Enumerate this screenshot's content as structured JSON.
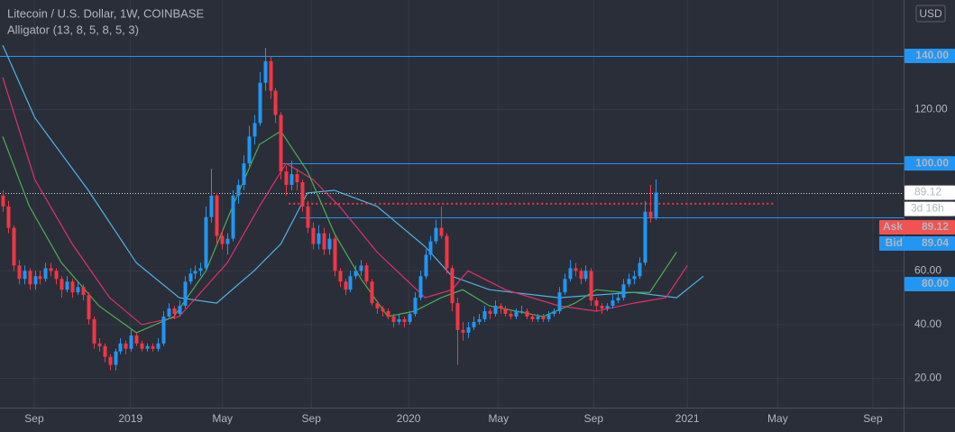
{
  "chart_data": {
    "type": "candlestick",
    "title": "Litecoin / U.S. Dollar, 1W, COINBASE",
    "subtitle": "Alligator (13, 8, 5, 8, 5, 3)",
    "currency": "USD",
    "up_color": "#2196f3",
    "down_color": "#f23645",
    "grid": true,
    "xlim": [
      -0.5,
      168.1
    ],
    "ylim": [
      9.1,
      160.8
    ],
    "xticks": [
      {
        "value": 5.9,
        "label": "Sep"
      },
      {
        "value": 23.9,
        "label": "2019"
      },
      {
        "value": 41.1,
        "label": "May"
      },
      {
        "value": 57.7,
        "label": "Sep"
      },
      {
        "value": 75.9,
        "label": "2020"
      },
      {
        "value": 92.7,
        "label": "May"
      },
      {
        "value": 110.5,
        "label": "Sep"
      },
      {
        "value": 128,
        "label": "2021"
      },
      {
        "value": 144.9,
        "label": "May"
      },
      {
        "value": 162.7,
        "label": "Sep"
      }
    ],
    "yticks": [
      {
        "value": 20,
        "label": "20.00"
      },
      {
        "value": 40,
        "label": "40.00"
      },
      {
        "value": 60,
        "label": "60.00"
      },
      {
        "value": 120,
        "label": "120.00"
      }
    ],
    "ohlc": [
      [
        88,
        90,
        82,
        84
      ],
      [
        84,
        86,
        74,
        76
      ],
      [
        76,
        77,
        60,
        62
      ],
      [
        62,
        64,
        55,
        57
      ],
      [
        57,
        62,
        55,
        60
      ],
      [
        60,
        61,
        53,
        55
      ],
      [
        55,
        60,
        53,
        58
      ],
      [
        58,
        60,
        55,
        57
      ],
      [
        57,
        63,
        56,
        61
      ],
      [
        61,
        63,
        58,
        60
      ],
      [
        60,
        61,
        55,
        57
      ],
      [
        57,
        58,
        50,
        53
      ],
      [
        53,
        58,
        52,
        56
      ],
      [
        56,
        57,
        50,
        52
      ],
      [
        52,
        56,
        51,
        54
      ],
      [
        54,
        55,
        49,
        51
      ],
      [
        51,
        52,
        40,
        42
      ],
      [
        42,
        43,
        31,
        33
      ],
      [
        33,
        35,
        30,
        32
      ],
      [
        32,
        33,
        26,
        28
      ],
      [
        28,
        29,
        23,
        25
      ],
      [
        25,
        31,
        23,
        30
      ],
      [
        30,
        35,
        29,
        33
      ],
      [
        33,
        34,
        29,
        31
      ],
      [
        31,
        38,
        30,
        36
      ],
      [
        36,
        37,
        32,
        33
      ],
      [
        33,
        34,
        30,
        31
      ],
      [
        31,
        33,
        30,
        32
      ],
      [
        32,
        33,
        30,
        31
      ],
      [
        31,
        35,
        30,
        33
      ],
      [
        33,
        45,
        32,
        43
      ],
      [
        43,
        48,
        42,
        46
      ],
      [
        46,
        47,
        42,
        44
      ],
      [
        44,
        49,
        43,
        47
      ],
      [
        47,
        58,
        46,
        56
      ],
      [
        56,
        61,
        55,
        59
      ],
      [
        59,
        62,
        57,
        60
      ],
      [
        60,
        63,
        58,
        61
      ],
      [
        61,
        84,
        60,
        80
      ],
      [
        80,
        98,
        78,
        88
      ],
      [
        88,
        89,
        70,
        73
      ],
      [
        73,
        75,
        68,
        70
      ],
      [
        70,
        74,
        66,
        72
      ],
      [
        72,
        90,
        71,
        88
      ],
      [
        88,
        94,
        85,
        92
      ],
      [
        92,
        103,
        90,
        100
      ],
      [
        100,
        114,
        98,
        110
      ],
      [
        110,
        118,
        107,
        115
      ],
      [
        115,
        134,
        114,
        130
      ],
      [
        130,
        143,
        127,
        138
      ],
      [
        138,
        140,
        124,
        127
      ],
      [
        127,
        128,
        115,
        118
      ],
      [
        118,
        119,
        94,
        97
      ],
      [
        97,
        99,
        88,
        92
      ],
      [
        92,
        101,
        90,
        96
      ],
      [
        96,
        98,
        90,
        93
      ],
      [
        93,
        94,
        82,
        84
      ],
      [
        84,
        86,
        74,
        76
      ],
      [
        76,
        78,
        68,
        70
      ],
      [
        70,
        77,
        68,
        74
      ],
      [
        74,
        76,
        66,
        68
      ],
      [
        68,
        74,
        66,
        72
      ],
      [
        72,
        73,
        58,
        60
      ],
      [
        60,
        61,
        54,
        56
      ],
      [
        56,
        57,
        51,
        53
      ],
      [
        53,
        60,
        52,
        58
      ],
      [
        58,
        62,
        57,
        60
      ],
      [
        60,
        64,
        58,
        62
      ],
      [
        62,
        63,
        55,
        56
      ],
      [
        56,
        57,
        47,
        48
      ],
      [
        48,
        49,
        44,
        46
      ],
      [
        46,
        47,
        43,
        45
      ],
      [
        45,
        46,
        42,
        43
      ],
      [
        43,
        44,
        39,
        41
      ],
      [
        41,
        44,
        40,
        42
      ],
      [
        42,
        43,
        39,
        41
      ],
      [
        41,
        45,
        40,
        44
      ],
      [
        44,
        52,
        43,
        50
      ],
      [
        50,
        60,
        49,
        58
      ],
      [
        58,
        68,
        57,
        66
      ],
      [
        66,
        73,
        64,
        71
      ],
      [
        71,
        79,
        70,
        76
      ],
      [
        76,
        84,
        72,
        73
      ],
      [
        73,
        74,
        59,
        61
      ],
      [
        61,
        62,
        45,
        48
      ],
      [
        48,
        50,
        25,
        38
      ],
      [
        38,
        41,
        34,
        37
      ],
      [
        37,
        41,
        35,
        39
      ],
      [
        39,
        43,
        38,
        41
      ],
      [
        41,
        44,
        40,
        42
      ],
      [
        42,
        47,
        41,
        45
      ],
      [
        45,
        46,
        42,
        44
      ],
      [
        44,
        49,
        43,
        47
      ],
      [
        47,
        48,
        44,
        46
      ],
      [
        46,
        47,
        43,
        44
      ],
      [
        44,
        45,
        42,
        43
      ],
      [
        43,
        46,
        42,
        45
      ],
      [
        45,
        47,
        44,
        45
      ],
      [
        45,
        46,
        42,
        43
      ],
      [
        43,
        44,
        41,
        42
      ],
      [
        42,
        44,
        41,
        43
      ],
      [
        43,
        44,
        41,
        42
      ],
      [
        42,
        45,
        41,
        44
      ],
      [
        44,
        46,
        43,
        45
      ],
      [
        45,
        54,
        44,
        52
      ],
      [
        52,
        59,
        51,
        57
      ],
      [
        57,
        64,
        56,
        61
      ],
      [
        61,
        63,
        58,
        60
      ],
      [
        60,
        61,
        55,
        57
      ],
      [
        57,
        62,
        56,
        60
      ],
      [
        60,
        61,
        47,
        49
      ],
      [
        49,
        50,
        45,
        47
      ],
      [
        47,
        48,
        44,
        46
      ],
      [
        46,
        48,
        45,
        47
      ],
      [
        47,
        51,
        46,
        49
      ],
      [
        49,
        52,
        48,
        50
      ],
      [
        50,
        57,
        49,
        55
      ],
      [
        55,
        59,
        54,
        57
      ],
      [
        57,
        60,
        55,
        58
      ],
      [
        58,
        65,
        57,
        63
      ],
      [
        63,
        86,
        62,
        82
      ],
      [
        82,
        92,
        78,
        80
      ],
      [
        80,
        94,
        79,
        89.12
      ]
    ],
    "series": [
      {
        "color": "#4fb3e8",
        "x": [
          0,
          6,
          16,
          25,
          33,
          40,
          47,
          52,
          57,
          62,
          70,
          79,
          84,
          91,
          104,
          118,
          126,
          131
        ],
        "values": [
          144,
          117,
          90,
          63,
          50,
          48,
          60,
          70,
          89,
          90,
          84,
          69,
          58,
          53,
          50,
          52,
          50,
          58
        ]
      },
      {
        "color": "#e0306a",
        "x": [
          0,
          6,
          13,
          20,
          26,
          33,
          42,
          48,
          53,
          58,
          63,
          70,
          79,
          84,
          87,
          94,
          104,
          111,
          118,
          124,
          128
        ],
        "values": [
          132,
          94,
          70,
          50,
          40,
          43,
          63,
          84,
          100,
          94,
          84,
          67,
          50,
          53,
          60,
          53,
          47,
          45,
          48,
          50,
          62
        ]
      },
      {
        "color": "#4caf50",
        "x": [
          0,
          5,
          11,
          18,
          25,
          32,
          38,
          43,
          48,
          52,
          57,
          62,
          67,
          72,
          77,
          82,
          86,
          91,
          101,
          107,
          111,
          116,
          121,
          126
        ],
        "values": [
          110,
          84,
          63,
          47,
          37,
          43,
          60,
          84,
          107,
          112,
          97,
          74,
          57,
          43,
          45,
          50,
          53,
          47,
          43,
          48,
          53,
          52,
          52,
          67
        ]
      }
    ],
    "hlines": [
      {
        "value": 140,
        "label": "140.00",
        "color": "#2196f3",
        "from": -0.5
      },
      {
        "value": 100,
        "label": "100.00",
        "color": "#2196f3",
        "from": 51.8
      },
      {
        "value": 80,
        "label": "80.00",
        "color": "#2196f3",
        "from": 55.6
      }
    ],
    "target": {
      "value": 85,
      "from": 53.5,
      "to": 144.5,
      "color": "#f23645"
    },
    "last_price": {
      "value": 89.12,
      "label": "89.12",
      "countdown": "3d 16h"
    },
    "ask": {
      "name": "Ask",
      "value": 89.12,
      "label": "89.12",
      "color": "#f05350"
    },
    "bid": {
      "name": "Bid",
      "value": 89.04,
      "label": "89.04",
      "color": "#2196f3"
    }
  }
}
